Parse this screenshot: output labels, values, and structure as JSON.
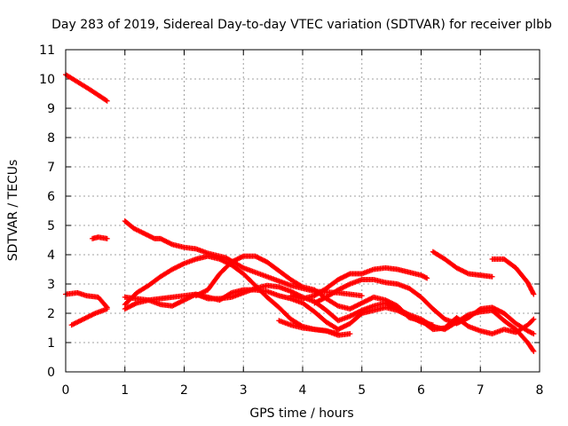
{
  "chart_data": {
    "type": "scatter",
    "title": "Day 283 of 2019, Sidereal Day-to-day VTEC variation (SDTVAR) for receiver plbb",
    "xlabel": "GPS time / hours",
    "ylabel": "SDTVAR / TECUs",
    "xlim": [
      0,
      8
    ],
    "ylim": [
      0,
      11
    ],
    "xticks": [
      "0",
      "1",
      "2",
      "3",
      "4",
      "5",
      "6",
      "7",
      "8"
    ],
    "yticks": [
      "0",
      "1",
      "2",
      "3",
      "4",
      "5",
      "6",
      "7",
      "8",
      "9",
      "10",
      "11"
    ],
    "grid": true,
    "marker": "+",
    "color": "#ff0000",
    "series": [
      {
        "name": "s1",
        "points": [
          [
            0.0,
            10.15
          ],
          [
            0.2,
            9.9
          ],
          [
            0.4,
            9.65
          ],
          [
            0.55,
            9.45
          ],
          [
            0.7,
            9.25
          ]
        ]
      },
      {
        "name": "s2",
        "points": [
          [
            0.0,
            2.65
          ],
          [
            0.2,
            2.7
          ],
          [
            0.35,
            2.6
          ],
          [
            0.55,
            2.55
          ],
          [
            0.7,
            2.2
          ]
        ]
      },
      {
        "name": "s3",
        "points": [
          [
            0.1,
            1.6
          ],
          [
            0.3,
            1.8
          ],
          [
            0.5,
            2.0
          ],
          [
            0.7,
            2.15
          ]
        ]
      },
      {
        "name": "s4",
        "points": [
          [
            0.45,
            4.55
          ],
          [
            0.55,
            4.6
          ],
          [
            0.7,
            4.55
          ]
        ]
      },
      {
        "name": "s5",
        "points": [
          [
            1.0,
            5.15
          ],
          [
            1.15,
            4.9
          ],
          [
            1.3,
            4.75
          ],
          [
            1.5,
            4.55
          ],
          [
            1.6,
            4.55
          ],
          [
            1.8,
            4.35
          ],
          [
            2.0,
            4.25
          ],
          [
            2.2,
            4.2
          ],
          [
            2.4,
            4.05
          ],
          [
            2.7,
            3.9
          ],
          [
            3.0,
            3.55
          ],
          [
            3.4,
            3.25
          ],
          [
            3.8,
            2.95
          ],
          [
            4.2,
            2.75
          ],
          [
            4.6,
            2.7
          ],
          [
            5.0,
            2.6
          ]
        ]
      },
      {
        "name": "s6",
        "points": [
          [
            1.0,
            2.3
          ],
          [
            1.2,
            2.7
          ],
          [
            1.4,
            2.95
          ],
          [
            1.6,
            3.25
          ],
          [
            1.8,
            3.5
          ],
          [
            2.0,
            3.7
          ],
          [
            2.2,
            3.85
          ],
          [
            2.4,
            3.95
          ],
          [
            2.6,
            3.85
          ],
          [
            2.8,
            3.65
          ],
          [
            3.0,
            3.35
          ],
          [
            3.2,
            2.95
          ],
          [
            3.4,
            2.55
          ],
          [
            3.6,
            2.2
          ],
          [
            3.8,
            1.8
          ],
          [
            4.0,
            1.55
          ],
          [
            4.2,
            1.45
          ],
          [
            4.4,
            1.4
          ],
          [
            4.6,
            1.25
          ],
          [
            4.8,
            1.3
          ]
        ]
      },
      {
        "name": "s7",
        "points": [
          [
            1.0,
            2.55
          ],
          [
            1.2,
            2.5
          ],
          [
            1.4,
            2.45
          ],
          [
            1.6,
            2.5
          ],
          [
            1.8,
            2.55
          ],
          [
            2.0,
            2.6
          ],
          [
            2.2,
            2.65
          ],
          [
            2.4,
            2.55
          ],
          [
            2.6,
            2.45
          ],
          [
            2.8,
            2.7
          ],
          [
            3.0,
            2.8
          ],
          [
            3.2,
            2.8
          ],
          [
            3.4,
            2.75
          ],
          [
            3.6,
            2.6
          ],
          [
            3.8,
            2.5
          ],
          [
            4.0,
            2.35
          ],
          [
            4.2,
            2.05
          ],
          [
            4.4,
            1.7
          ],
          [
            4.6,
            1.45
          ],
          [
            4.8,
            1.65
          ],
          [
            5.0,
            2.0
          ],
          [
            5.2,
            2.1
          ],
          [
            5.4,
            2.2
          ],
          [
            5.6,
            2.1
          ],
          [
            5.8,
            1.9
          ],
          [
            6.0,
            1.7
          ],
          [
            6.2,
            1.6
          ]
        ]
      },
      {
        "name": "s8",
        "points": [
          [
            1.0,
            2.15
          ],
          [
            1.2,
            2.35
          ],
          [
            1.4,
            2.45
          ],
          [
            1.6,
            2.3
          ],
          [
            1.8,
            2.25
          ],
          [
            2.0,
            2.45
          ],
          [
            2.2,
            2.65
          ],
          [
            2.4,
            2.5
          ],
          [
            2.6,
            2.5
          ],
          [
            2.8,
            2.55
          ],
          [
            3.0,
            2.7
          ],
          [
            3.2,
            2.85
          ],
          [
            3.4,
            2.95
          ],
          [
            3.6,
            2.9
          ],
          [
            3.8,
            2.75
          ],
          [
            4.0,
            2.55
          ],
          [
            4.2,
            2.4
          ],
          [
            4.4,
            2.1
          ],
          [
            4.6,
            1.75
          ],
          [
            4.8,
            1.9
          ],
          [
            5.0,
            2.1
          ],
          [
            5.2,
            2.25
          ],
          [
            5.4,
            2.35
          ],
          [
            5.6,
            2.15
          ],
          [
            5.8,
            1.95
          ],
          [
            6.0,
            1.8
          ],
          [
            6.2,
            1.55
          ],
          [
            6.4,
            1.45
          ],
          [
            6.6,
            1.7
          ],
          [
            6.8,
            1.95
          ],
          [
            7.0,
            2.05
          ],
          [
            7.2,
            2.1
          ],
          [
            7.4,
            1.75
          ],
          [
            7.6,
            1.45
          ],
          [
            7.8,
            1.0
          ],
          [
            7.9,
            0.7
          ]
        ]
      },
      {
        "name": "s9",
        "points": [
          [
            2.2,
            2.6
          ],
          [
            2.4,
            2.8
          ],
          [
            2.6,
            3.35
          ],
          [
            2.8,
            3.75
          ],
          [
            3.0,
            3.95
          ],
          [
            3.2,
            3.95
          ],
          [
            3.4,
            3.75
          ],
          [
            3.6,
            3.45
          ],
          [
            3.8,
            3.15
          ],
          [
            4.0,
            2.9
          ],
          [
            4.2,
            2.8
          ],
          [
            4.4,
            2.5
          ],
          [
            4.6,
            2.25
          ],
          [
            4.8,
            2.15
          ],
          [
            5.0,
            2.35
          ],
          [
            5.2,
            2.55
          ],
          [
            5.4,
            2.45
          ],
          [
            5.6,
            2.25
          ],
          [
            5.8,
            1.85
          ],
          [
            6.0,
            1.75
          ],
          [
            6.2,
            1.45
          ],
          [
            6.4,
            1.5
          ],
          [
            6.6,
            1.85
          ],
          [
            6.8,
            1.55
          ],
          [
            7.0,
            1.4
          ],
          [
            7.2,
            1.3
          ],
          [
            7.4,
            1.45
          ],
          [
            7.6,
            1.35
          ],
          [
            7.8,
            1.6
          ],
          [
            7.9,
            1.8
          ]
        ]
      },
      {
        "name": "s10",
        "points": [
          [
            3.6,
            1.75
          ],
          [
            3.8,
            1.6
          ],
          [
            4.0,
            1.5
          ],
          [
            4.2,
            1.45
          ],
          [
            4.4,
            1.4
          ],
          [
            4.6,
            1.3
          ]
        ]
      },
      {
        "name": "s11",
        "points": [
          [
            3.8,
            2.6
          ],
          [
            4.0,
            2.5
          ],
          [
            4.2,
            2.6
          ],
          [
            4.4,
            2.85
          ],
          [
            4.6,
            3.15
          ],
          [
            4.8,
            3.35
          ],
          [
            5.0,
            3.35
          ],
          [
            5.2,
            3.5
          ],
          [
            5.4,
            3.55
          ],
          [
            5.6,
            3.5
          ],
          [
            5.8,
            3.4
          ],
          [
            6.0,
            3.3
          ],
          [
            6.1,
            3.2
          ]
        ]
      },
      {
        "name": "s12",
        "points": [
          [
            4.2,
            2.35
          ],
          [
            4.4,
            2.55
          ],
          [
            4.6,
            2.8
          ],
          [
            4.8,
            3.0
          ],
          [
            5.0,
            3.15
          ],
          [
            5.2,
            3.15
          ],
          [
            5.4,
            3.05
          ],
          [
            5.6,
            3.0
          ],
          [
            5.8,
            2.85
          ],
          [
            6.0,
            2.55
          ],
          [
            6.2,
            2.15
          ],
          [
            6.4,
            1.8
          ],
          [
            6.6,
            1.65
          ],
          [
            6.8,
            1.85
          ],
          [
            7.0,
            2.15
          ],
          [
            7.2,
            2.2
          ],
          [
            7.4,
            2.0
          ],
          [
            7.6,
            1.65
          ],
          [
            7.8,
            1.4
          ],
          [
            7.9,
            1.3
          ]
        ]
      },
      {
        "name": "s13",
        "points": [
          [
            6.2,
            4.1
          ],
          [
            6.4,
            3.85
          ],
          [
            6.6,
            3.55
          ],
          [
            6.8,
            3.35
          ],
          [
            7.0,
            3.3
          ],
          [
            7.2,
            3.25
          ]
        ]
      },
      {
        "name": "s14",
        "points": [
          [
            7.2,
            3.85
          ],
          [
            7.4,
            3.85
          ],
          [
            7.6,
            3.55
          ],
          [
            7.8,
            3.05
          ],
          [
            7.9,
            2.65
          ]
        ]
      }
    ]
  }
}
